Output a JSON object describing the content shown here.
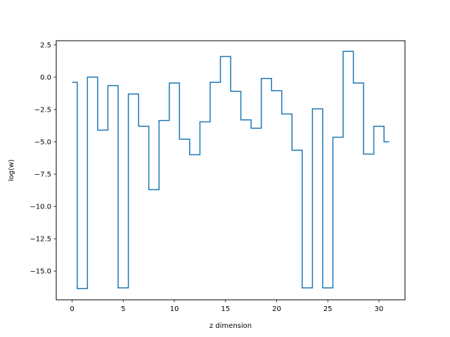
{
  "chart_data": {
    "type": "line",
    "drawstyle": "steps-mid",
    "title": "",
    "xlabel": "z dimension",
    "ylabel": "log(w)",
    "xlim": [
      -1.55,
      32.55
    ],
    "ylim": [
      -17.22,
      2.82
    ],
    "grid": false,
    "legend": "none",
    "xticks": [
      0,
      5,
      10,
      15,
      20,
      25,
      30
    ],
    "xtick_labels": [
      "0",
      "5",
      "10",
      "15",
      "20",
      "25",
      "30"
    ],
    "yticks": [
      2.5,
      0.0,
      -2.5,
      -5.0,
      -7.5,
      -10.0,
      -12.5,
      -15.0
    ],
    "ytick_labels": [
      "2.5",
      "0.0",
      "−2.5",
      "−5.0",
      "−7.5",
      "−10.0",
      "−12.5",
      "−15.0"
    ],
    "series": [
      {
        "color": "#1f77b4",
        "x": [
          0,
          1,
          2,
          3,
          4,
          5,
          6,
          7,
          8,
          9,
          10,
          11,
          12,
          13,
          14,
          15,
          16,
          17,
          18,
          19,
          20,
          21,
          22,
          23,
          24,
          25,
          26,
          27,
          28,
          29,
          30,
          31
        ],
        "y": [
          -0.4,
          -16.35,
          0.0,
          -4.1,
          -0.65,
          -16.3,
          -1.3,
          -3.8,
          -8.7,
          -3.35,
          -0.45,
          -4.8,
          -6.0,
          -3.45,
          -0.4,
          1.6,
          -1.1,
          -3.3,
          -3.95,
          -0.1,
          -1.05,
          -2.85,
          -5.65,
          -16.3,
          -2.45,
          -16.3,
          -4.65,
          2.0,
          -0.45,
          -5.95,
          -3.8,
          -5.0
        ]
      }
    ]
  }
}
